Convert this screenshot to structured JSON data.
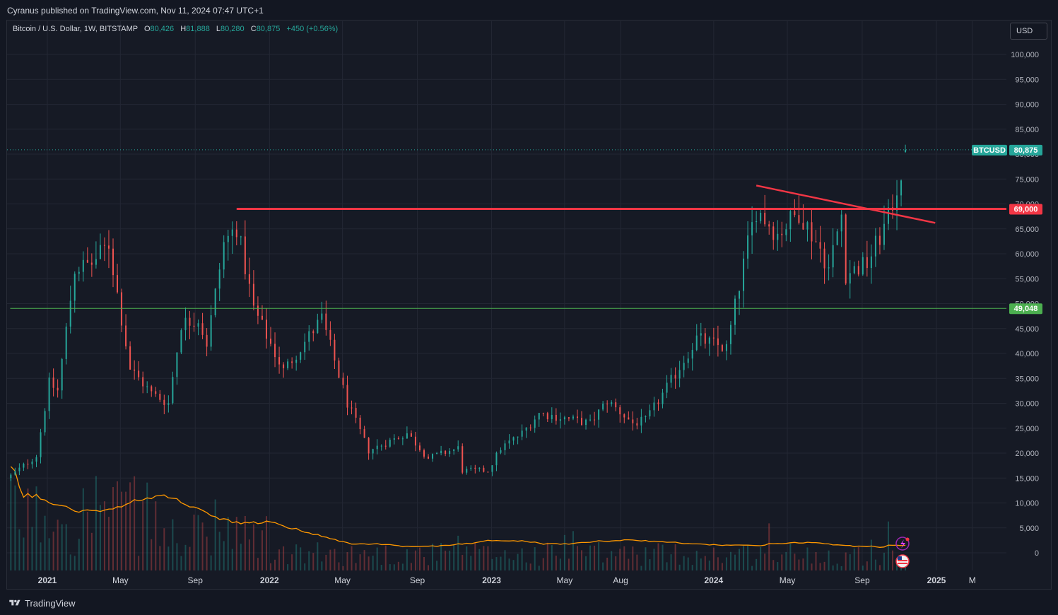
{
  "header": {
    "publisher_line": "Cyranus published on TradingView.com, Nov 11, 2024 07:47 UTC+1"
  },
  "legend": {
    "symbol": "Bitcoin / U.S. Dollar, 1W, BITSTAMP",
    "open_label": "O",
    "open": "80,426",
    "high_label": "H",
    "high": "81,888",
    "low_label": "L",
    "low": "80,280",
    "close_label": "C",
    "close": "80,875",
    "change": "+450 (+0.56%)"
  },
  "currency_button": "USD",
  "footer": {
    "brand": "TradingView"
  },
  "colors": {
    "up": "#26a69a",
    "down": "#ef5350",
    "resistance": "#f23645",
    "support": "#4caf50",
    "volume_ma": "#ff9800",
    "background": "#161a25"
  },
  "chart_data": {
    "type": "candlestick",
    "ylim": [
      -3000,
      104000
    ],
    "y_ticks": [
      "100,000",
      "95,000",
      "90,000",
      "85,000",
      "80,000",
      "75,000",
      "70,000",
      "65,000",
      "60,000",
      "55,000",
      "50,000",
      "45,000",
      "40,000",
      "35,000",
      "30,000",
      "25,000",
      "20,000",
      "15,000",
      "10,000",
      "5,000",
      "0"
    ],
    "x_tick_labels": [
      "2021",
      "May",
      "Sep",
      "2022",
      "May",
      "Sep",
      "2023",
      "May",
      "Aug",
      "2024",
      "May",
      "Sep",
      "2025",
      "M"
    ],
    "x_tick_dates": [
      "2021-01-01",
      "2021-05-01",
      "2021-09-01",
      "2022-01-01",
      "2022-05-01",
      "2022-09-01",
      "2023-01-01",
      "2023-05-01",
      "2023-08-01",
      "2024-01-01",
      "2024-05-01",
      "2024-09-01",
      "2025-01-01",
      "2025-03-01"
    ],
    "last_price_label": {
      "name": "BTCUSD",
      "value": 80875,
      "text": "80,875"
    },
    "horizontal_levels": [
      {
        "value": 69000,
        "text": "69,000",
        "start_date": "2021-11-08",
        "color": "#f23645"
      },
      {
        "value": 49048,
        "text": "49,048",
        "start_date": "2020-11-01",
        "color": "#4caf50"
      }
    ],
    "trendline": {
      "start": {
        "date": "2024-03-11",
        "value": 73700
      },
      "end": {
        "date": "2024-12-30",
        "value": 66200
      },
      "color": "#f23645"
    },
    "series": [
      {
        "name": "BTCUSD",
        "anchors": [
          [
            "2020-11-02",
            15500
          ],
          [
            "2020-12-14",
            19500
          ],
          [
            "2021-01-04",
            34000
          ],
          [
            "2021-01-18",
            32500
          ],
          [
            "2021-02-15",
            57000
          ],
          [
            "2021-03-15",
            58000
          ],
          [
            "2021-04-12",
            62000
          ],
          [
            "2021-05-17",
            37000
          ],
          [
            "2021-06-21",
            32000
          ],
          [
            "2021-07-19",
            30000
          ],
          [
            "2021-08-09",
            46000
          ],
          [
            "2021-09-06",
            47000
          ],
          [
            "2021-09-20",
            42000
          ],
          [
            "2021-10-18",
            62000
          ],
          [
            "2021-11-08",
            65500
          ],
          [
            "2021-12-06",
            49000
          ],
          [
            "2022-01-24",
            36500
          ],
          [
            "2022-03-28",
            47000
          ],
          [
            "2022-05-09",
            30000
          ],
          [
            "2022-06-13",
            20500
          ],
          [
            "2022-08-15",
            24000
          ],
          [
            "2022-09-19",
            19000
          ],
          [
            "2022-11-07",
            21000
          ],
          [
            "2022-11-14",
            16500
          ],
          [
            "2022-12-26",
            16500
          ],
          [
            "2023-01-16",
            21000
          ],
          [
            "2023-02-20",
            24000
          ],
          [
            "2023-03-20",
            28000
          ],
          [
            "2023-06-12",
            26000
          ],
          [
            "2023-07-10",
            30500
          ],
          [
            "2023-08-21",
            26000
          ],
          [
            "2023-09-11",
            26500
          ],
          [
            "2023-10-23",
            34500
          ],
          [
            "2023-12-04",
            43000
          ],
          [
            "2024-01-22",
            41000
          ],
          [
            "2024-02-26",
            62000
          ],
          [
            "2024-03-11",
            69000
          ],
          [
            "2024-04-15",
            64000
          ],
          [
            "2024-05-20",
            68500
          ],
          [
            "2024-06-24",
            61000
          ],
          [
            "2024-07-08",
            57000
          ],
          [
            "2024-07-29",
            68000
          ],
          [
            "2024-08-05",
            56000
          ],
          [
            "2024-09-09",
            58000
          ],
          [
            "2024-10-14",
            67000
          ],
          [
            "2024-11-04",
            76500
          ],
          [
            "2024-11-11",
            80875
          ]
        ]
      }
    ]
  }
}
